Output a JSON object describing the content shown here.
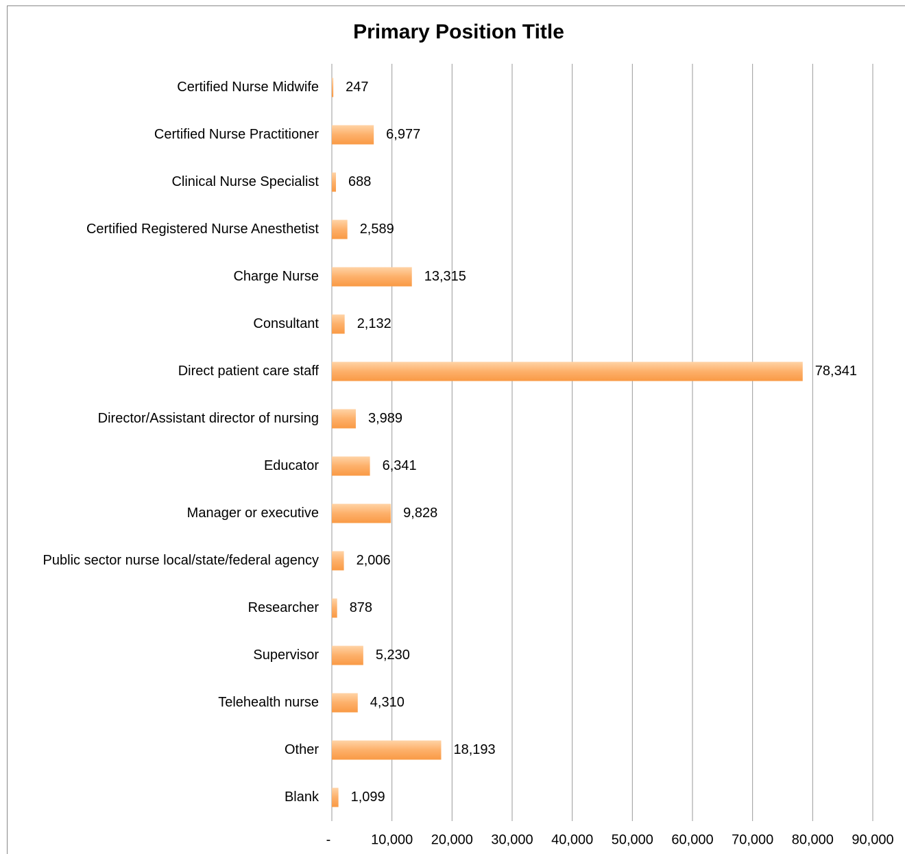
{
  "chart_data": {
    "type": "bar",
    "orientation": "horizontal",
    "title": "Primary Position Title",
    "categories": [
      "Certified Nurse Midwife",
      "Certified Nurse Practitioner",
      "Clinical Nurse Specialist",
      "Certified Registered Nurse Anesthetist",
      "Charge Nurse",
      "Consultant",
      "Direct patient care staff",
      "Director/Assistant director of nursing",
      "Educator",
      "Manager or executive",
      "Public sector nurse local/state/federal agency",
      "Researcher",
      "Supervisor",
      "Telehealth nurse",
      "Other",
      "Blank"
    ],
    "values": [
      247,
      6977,
      688,
      2589,
      13315,
      2132,
      78341,
      3989,
      6341,
      9828,
      2006,
      878,
      5230,
      4310,
      18193,
      1099
    ],
    "value_labels": [
      "247",
      "6,977",
      "688",
      "2,589",
      "13,315",
      "2,132",
      "78,341",
      "3,989",
      "6,341",
      "9,828",
      "2,006",
      "878",
      "5,230",
      "4,310",
      "18,193",
      "1,099"
    ],
    "color": "#fdb06a",
    "xlim": [
      0,
      90000
    ],
    "xticks": [
      {
        "value": 0,
        "label": "-"
      },
      {
        "value": 10000,
        "label": "10,000"
      },
      {
        "value": 20000,
        "label": "20,000"
      },
      {
        "value": 30000,
        "label": "30,000"
      },
      {
        "value": 40000,
        "label": "40,000"
      },
      {
        "value": 50000,
        "label": "50,000"
      },
      {
        "value": 60000,
        "label": "60,000"
      },
      {
        "value": 70000,
        "label": "70,000"
      },
      {
        "value": 80000,
        "label": "80,000"
      },
      {
        "value": 90000,
        "label": "90,000"
      }
    ],
    "grid": true
  }
}
